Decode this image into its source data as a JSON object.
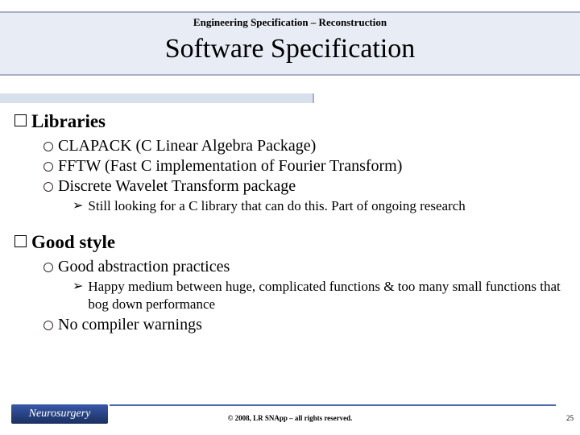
{
  "header": {
    "supertitle": "Engineering Specification – Reconstruction",
    "title": "Software Specification"
  },
  "content": {
    "sections": [
      {
        "heading": "Libraries",
        "items": [
          {
            "text": "CLAPACK (C Linear Algebra Package)"
          },
          {
            "text": "FFTW (Fast C implementation of Fourier Transform)"
          },
          {
            "text": "Discrete Wavelet Transform package",
            "sub": [
              "Still looking for a C library that can do this. Part of ongoing research"
            ]
          }
        ]
      },
      {
        "heading": "Good style",
        "items": [
          {
            "text": "Good abstraction practices",
            "sub": [
              "Happy medium between huge, complicated functions & too many small functions that bog down performance"
            ]
          },
          {
            "text": "No compiler warnings"
          }
        ]
      }
    ]
  },
  "footer": {
    "logo": "Neurosurgery",
    "copyright": "© 2008, LR SNApp – all rights reserved.",
    "pagenum": "25"
  },
  "colors": {
    "band_bg": "#e8ecf4",
    "band_border": "#a8b0c8",
    "logo_grad_top": "#3858a8",
    "logo_grad_bot": "#1a3060",
    "footer_line": "#4a6aa8"
  }
}
